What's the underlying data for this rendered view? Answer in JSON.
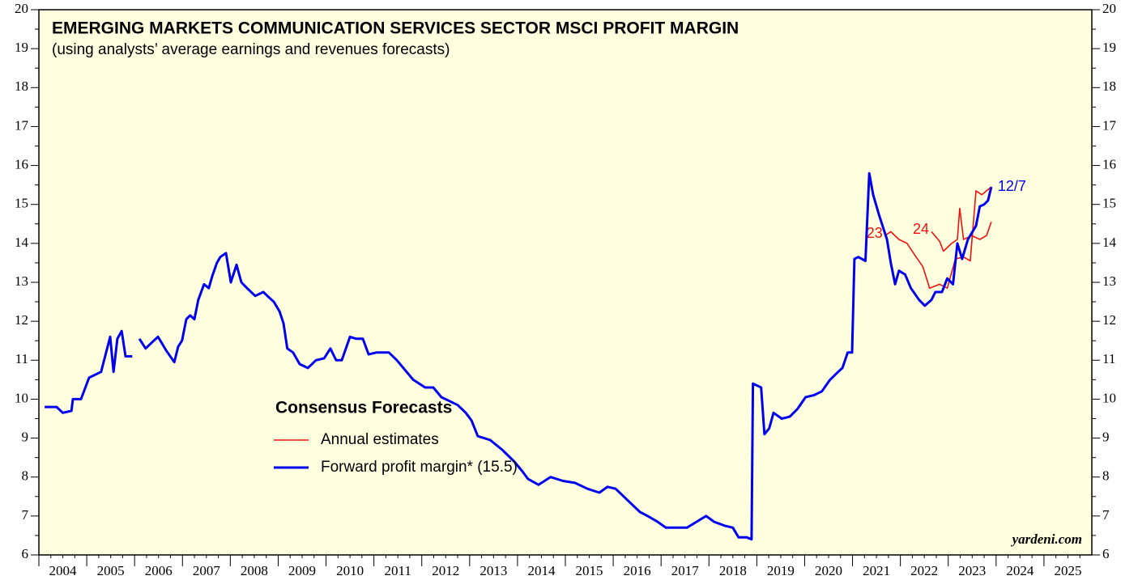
{
  "chart_data": {
    "type": "line",
    "title": "EMERGING MARKETS COMMUNICATION SERVICES SECTOR MSCI PROFIT MARGIN",
    "subtitle": "(using analysts’ average earnings and revenues forecasts)",
    "source": "yardeni.com",
    "xlim": [
      2004,
      2026
    ],
    "xticks": [
      2004,
      2005,
      2006,
      2007,
      2008,
      2009,
      2010,
      2011,
      2012,
      2013,
      2014,
      2015,
      2016,
      2017,
      2018,
      2019,
      2020,
      2021,
      2022,
      2023,
      2024,
      2025
    ],
    "ylim": [
      6,
      20
    ],
    "yticks": [
      6,
      7,
      8,
      9,
      10,
      11,
      12,
      13,
      14,
      15,
      16,
      17,
      18,
      19,
      20
    ],
    "legend": {
      "title": "Consensus Forecasts"
    },
    "series": [
      {
        "name": "Forward profit margin* (15.5)",
        "color": "#0000ee",
        "end_label": "12/7",
        "x": [
          2004.12,
          2004.37,
          2004.5,
          2004.68,
          2004.71,
          2004.88,
          2005.05,
          2005.3,
          2005.49,
          2005.56,
          2005.64,
          2005.73,
          2005.81,
          2005.95,
          2006.02,
          2006.1,
          2006.23,
          2006.4,
          2006.49,
          2006.66,
          2006.83,
          2006.91,
          2006.99,
          2007.08,
          2007.16,
          2007.25,
          2007.33,
          2007.45,
          2007.55,
          2007.62,
          2007.72,
          2007.79,
          2007.91,
          2008.01,
          2008.13,
          2008.23,
          2008.35,
          2008.52,
          2008.69,
          2008.82,
          2008.91,
          2009.03,
          2009.11,
          2009.19,
          2009.31,
          2009.45,
          2009.62,
          2009.79,
          2009.96,
          2010.09,
          2010.21,
          2010.33,
          2010.5,
          2010.63,
          2010.77,
          2010.89,
          2011.06,
          2011.31,
          2011.48,
          2011.65,
          2011.82,
          2012.07,
          2012.24,
          2012.41,
          2012.58,
          2012.75,
          2012.92,
          2013.04,
          2013.17,
          2013.43,
          2013.68,
          2013.93,
          2014.1,
          2014.22,
          2014.44,
          2014.69,
          2014.95,
          2015.2,
          2015.46,
          2015.71,
          2015.88,
          2016.05,
          2016.22,
          2016.39,
          2016.56,
          2016.72,
          2016.93,
          2017.1,
          2017.32,
          2017.54,
          2017.74,
          2017.94,
          2018.11,
          2018.33,
          2018.5,
          2018.62,
          2018.79,
          2018.89,
          2018.92,
          2019.09,
          2019.16,
          2019.26,
          2019.35,
          2019.52,
          2019.69,
          2019.85,
          2020.02,
          2020.19,
          2020.36,
          2020.53,
          2020.7,
          2020.79,
          2020.9,
          2020.99,
          2021.04,
          2021.12,
          2021.27,
          2021.35,
          2021.43,
          2021.55,
          2021.72,
          2021.8,
          2021.89,
          2021.97,
          2022.1,
          2022.22,
          2022.39,
          2022.51,
          2022.65,
          2022.73,
          2022.87,
          2022.98,
          2023.1,
          2023.19,
          2023.29,
          2023.41,
          2023.58,
          2023.66,
          2023.75,
          2023.83,
          2023.9
        ],
        "values": [
          9.8,
          9.8,
          9.65,
          9.7,
          10.0,
          10.0,
          10.55,
          10.7,
          11.6,
          10.7,
          11.55,
          11.75,
          11.1,
          11.1,
          null,
          11.55,
          11.3,
          11.5,
          11.6,
          11.25,
          10.95,
          11.35,
          11.5,
          12.05,
          12.15,
          12.05,
          12.55,
          12.95,
          12.85,
          13.15,
          13.5,
          13.65,
          13.75,
          13.0,
          13.45,
          13.0,
          12.85,
          12.65,
          12.75,
          12.6,
          12.5,
          12.25,
          11.95,
          11.3,
          11.2,
          10.9,
          10.8,
          11.0,
          11.05,
          11.3,
          11.0,
          11.0,
          11.6,
          11.55,
          11.55,
          11.15,
          11.2,
          11.2,
          11.0,
          10.75,
          10.5,
          10.3,
          10.3,
          10.05,
          9.95,
          9.85,
          9.65,
          9.45,
          9.05,
          8.95,
          8.7,
          8.4,
          8.15,
          7.95,
          7.8,
          8.0,
          7.9,
          7.85,
          7.7,
          7.6,
          7.75,
          7.7,
          7.5,
          7.3,
          7.1,
          7.0,
          6.85,
          6.7,
          6.7,
          6.7,
          6.85,
          7.0,
          6.85,
          6.75,
          6.7,
          6.45,
          6.45,
          6.4,
          10.4,
          10.3,
          9.1,
          9.25,
          9.65,
          9.5,
          9.55,
          9.75,
          10.05,
          10.1,
          10.2,
          10.5,
          10.7,
          10.8,
          11.2,
          11.2,
          13.6,
          13.65,
          13.55,
          15.8,
          15.25,
          14.75,
          14.1,
          13.5,
          12.95,
          13.3,
          13.2,
          12.85,
          12.55,
          12.4,
          12.55,
          12.75,
          12.75,
          13.1,
          12.95,
          14.0,
          13.6,
          14.1,
          14.45,
          14.95,
          15.0,
          15.1,
          15.45
        ]
      },
      {
        "name": "Annual estimates",
        "color": "#ee1111",
        "lines": [
          {
            "label": "23",
            "x": [
              2021.68,
              2021.8,
              2021.97,
              2022.14,
              2022.3,
              2022.47,
              2022.61,
              2022.82,
              2022.98,
              2023.15,
              2023.32,
              2023.46,
              2023.58,
              2023.7,
              2023.8,
              2023.9
            ],
            "values": [
              14.2,
              14.3,
              14.1,
              14.0,
              13.7,
              13.4,
              12.85,
              12.95,
              12.85,
              13.6,
              13.65,
              13.55,
              15.35,
              15.25,
              15.35,
              15.45
            ]
          },
          {
            "label": "24",
            "x": [
              2022.65,
              2022.82,
              2022.9,
              2023.07,
              2023.19,
              2023.24,
              2023.32,
              2023.49,
              2023.66,
              2023.8,
              2023.9
            ],
            "values": [
              14.3,
              14.05,
              13.8,
              14.0,
              14.1,
              14.9,
              14.1,
              14.2,
              14.1,
              14.2,
              14.55
            ]
          }
        ]
      }
    ]
  }
}
